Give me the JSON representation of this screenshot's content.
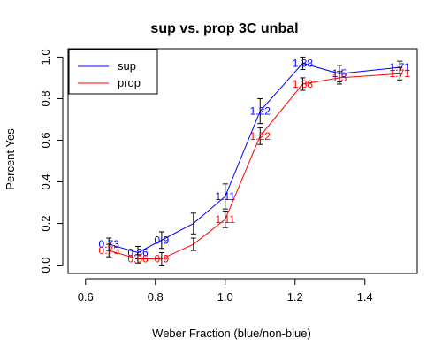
{
  "chart_data": {
    "type": "line",
    "title": "sup vs. prop 3C unbal",
    "xlabel": "Weber Fraction (blue/non-blue)",
    "ylabel": "Percent Yes",
    "xlim": [
      0.55,
      1.55
    ],
    "ylim": [
      -0.04,
      1.04
    ],
    "xticks": [
      "0.6",
      "0.8",
      "1.0",
      "1.2",
      "1.4"
    ],
    "yticks": [
      "0.0",
      "0.2",
      "0.4",
      "0.6",
      "0.8",
      "1.0"
    ],
    "legend_position": "top-left",
    "grid": false,
    "series": [
      {
        "name": "sup",
        "color": "#0000ff",
        "x": [
          0.667,
          0.75,
          0.818,
          0.909,
          1.0,
          1.1,
          1.222,
          1.327,
          1.5
        ],
        "y": [
          0.1,
          0.06,
          0.12,
          0.2,
          0.33,
          0.74,
          0.97,
          0.92,
          0.95
        ],
        "err": [
          0.03,
          0.03,
          0.04,
          0.05,
          0.06,
          0.06,
          0.03,
          0.04,
          0.03
        ],
        "labels": [
          "0.73",
          "0.86",
          "0.9",
          "",
          "1.11",
          "1.22",
          "1.38",
          "1.5",
          "1.71"
        ]
      },
      {
        "name": "prop",
        "color": "#ff0000",
        "x": [
          0.667,
          0.75,
          0.818,
          0.909,
          1.0,
          1.1,
          1.222,
          1.327,
          1.5
        ],
        "y": [
          0.07,
          0.03,
          0.03,
          0.1,
          0.22,
          0.62,
          0.87,
          0.9,
          0.92
        ],
        "err": [
          0.03,
          0.02,
          0.03,
          0.03,
          0.04,
          0.04,
          0.03,
          0.03,
          0.03
        ],
        "labels": [
          "0.73",
          "0.86",
          "0.9",
          "",
          "1.11",
          "1.22",
          "1.38",
          "1.5",
          "1.71"
        ]
      }
    ]
  }
}
